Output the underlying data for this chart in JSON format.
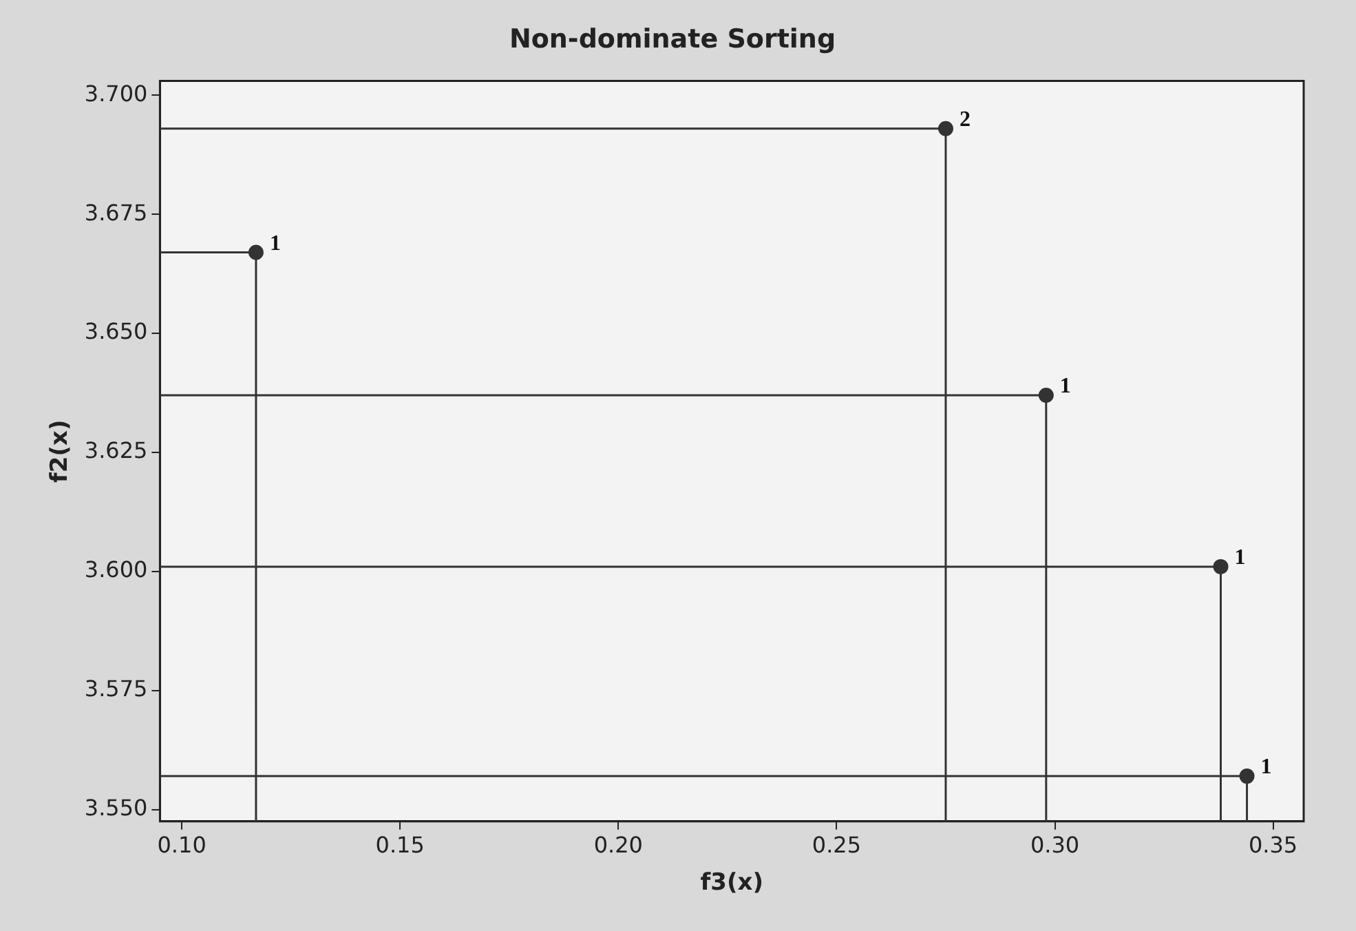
{
  "chart_data": {
    "type": "scatter",
    "title": "Non-dominate Sorting",
    "xlabel": "f3(x)",
    "ylabel": "f2(x)",
    "series": [
      {
        "type": "line",
        "marker": "none",
        "color": "#333333",
        "x": [
          0.095,
          0.117,
          0.117
        ],
        "values": [
          3.667,
          3.667,
          3.5475
        ]
      },
      {
        "type": "line",
        "marker": "none",
        "color": "#333333",
        "x": [
          0.095,
          0.275,
          0.275
        ],
        "values": [
          3.693,
          3.693,
          3.5475
        ]
      },
      {
        "type": "line",
        "marker": "none",
        "color": "#333333",
        "x": [
          0.095,
          0.298,
          0.298
        ],
        "values": [
          3.637,
          3.637,
          3.5475
        ]
      },
      {
        "type": "line",
        "marker": "none",
        "color": "#333333",
        "x": [
          0.095,
          0.338,
          0.338
        ],
        "values": [
          3.601,
          3.601,
          3.5475
        ]
      },
      {
        "type": "line",
        "marker": "none",
        "color": "#333333",
        "x": [
          0.095,
          0.344,
          0.344
        ],
        "values": [
          3.557,
          3.557,
          3.5475
        ]
      },
      {
        "marker": "circle",
        "color": "#333333",
        "x": [
          0.117,
          0.275,
          0.298,
          0.338,
          0.344
        ],
        "values": [
          3.667,
          3.693,
          3.637,
          3.601,
          3.557
        ]
      }
    ],
    "annotations": [
      {
        "text": "1",
        "x": 0.117,
        "y": 3.667
      },
      {
        "text": "2",
        "x": 0.275,
        "y": 3.693
      },
      {
        "text": "1",
        "x": 0.298,
        "y": 3.637
      },
      {
        "text": "1",
        "x": 0.338,
        "y": 3.601
      },
      {
        "text": "1",
        "x": 0.344,
        "y": 3.557
      }
    ],
    "grid": false,
    "legend": false,
    "xlim": [
      0.095,
      0.357
    ],
    "xticks": [
      {
        "value": 0.1,
        "label": "0.10"
      },
      {
        "value": 0.15,
        "label": "0.15"
      },
      {
        "value": 0.2,
        "label": "0.20"
      },
      {
        "value": 0.25,
        "label": "0.25"
      },
      {
        "value": 0.3,
        "label": "0.30"
      },
      {
        "value": 0.35,
        "label": "0.35"
      }
    ],
    "ylim": [
      3.5475,
      3.703
    ],
    "yticks": [
      {
        "value": 3.55,
        "label": "3.550"
      },
      {
        "value": 3.575,
        "label": "3.575"
      },
      {
        "value": 3.6,
        "label": "3.600"
      },
      {
        "value": 3.625,
        "label": "3.625"
      },
      {
        "value": 3.65,
        "label": "3.650"
      },
      {
        "value": 3.675,
        "label": "3.675"
      },
      {
        "value": 3.7,
        "label": "3.700"
      }
    ]
  }
}
